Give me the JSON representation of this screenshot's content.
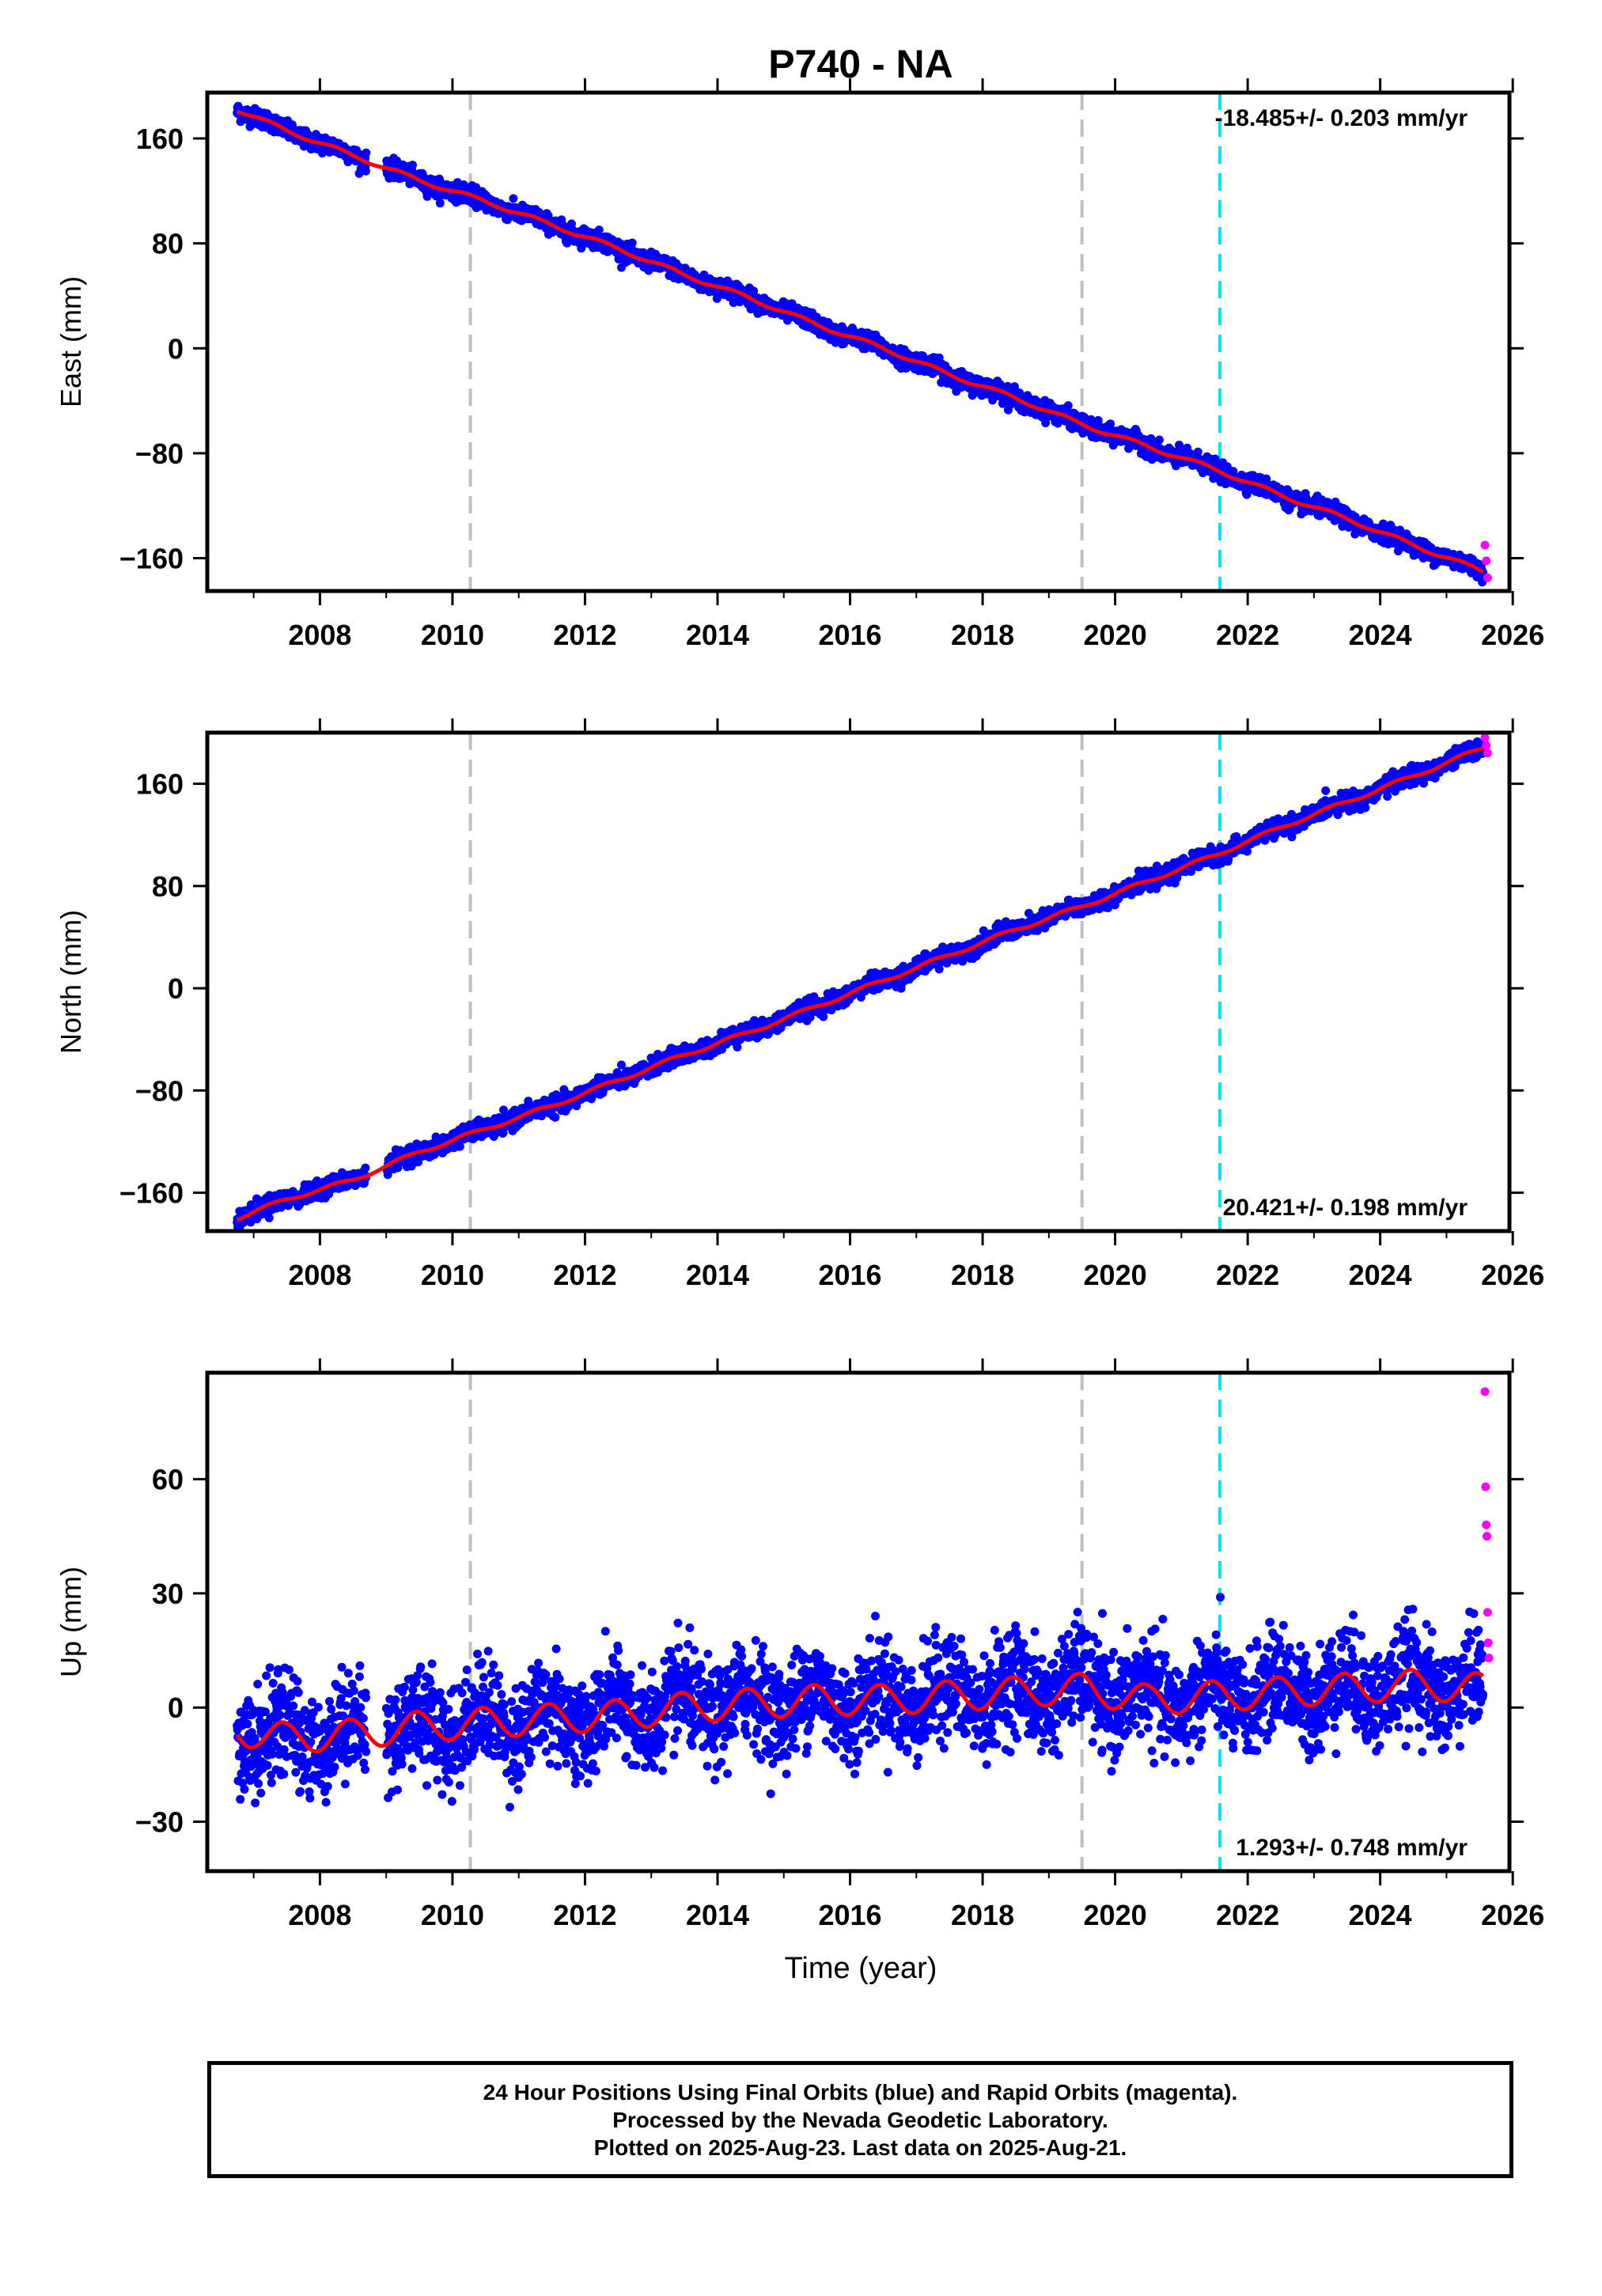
{
  "title": "P740 - NA",
  "xlabel": "Time (year)",
  "footer": {
    "line1": "24 Hour Positions Using Final Orbits (blue) and Rapid Orbits (magenta).",
    "line2": "Processed by the Nevada Geodetic Laboratory.",
    "line3": "Plotted on 2025-Aug-23. Last data on 2025-Aug-21."
  },
  "colors": {
    "final": "#0000ff",
    "rapid": "#ff00ff",
    "model": "#ff0000",
    "event_gray": "#c0c0c0",
    "event_cyan": "#00e5ee"
  },
  "chart_data": [
    {
      "type": "scatter",
      "ylabel": "East (mm)",
      "xlim": [
        2006.3,
        2025.95
      ],
      "ylim": [
        -185,
        195
      ],
      "yticks": [
        -160,
        -80,
        0,
        80,
        160
      ],
      "xticks": [
        2008,
        2010,
        2012,
        2014,
        2016,
        2018,
        2020,
        2022,
        2024,
        2026
      ],
      "rate_label": "-18.485+/- 0.203 mm/yr",
      "rate_position": "top-right",
      "grid": false,
      "events": [
        {
          "year": 2010.27,
          "color": "gray"
        },
        {
          "year": 2019.5,
          "color": "gray"
        },
        {
          "year": 2021.58,
          "color": "cyan"
        }
      ],
      "series": [
        {
          "name": "Final Orbits",
          "x": [
            2006.75,
            2007.5,
            2008.5,
            2009.5,
            2010.5,
            2011.5,
            2012.5,
            2013.5,
            2014.5,
            2015.5,
            2016.5,
            2017.5,
            2018.5,
            2019.5,
            2020.5,
            2021.5,
            2022.5,
            2023.5,
            2024.5,
            2025.55
          ],
          "y": [
            182,
            166,
            147,
            128,
            112,
            94,
            76,
            56,
            38,
            18,
            0,
            -20,
            -38,
            -58,
            -75,
            -92,
            -112,
            -130,
            -150,
            -170
          ]
        },
        {
          "name": "Rapid Orbits",
          "x": [
            2025.58,
            2025.6,
            2025.62
          ],
          "y": [
            -150,
            -162,
            -175
          ]
        }
      ]
    },
    {
      "type": "scatter",
      "ylabel": "North (mm)",
      "xlim": [
        2006.3,
        2025.95
      ],
      "ylim": [
        -190,
        200
      ],
      "yticks": [
        -160,
        -80,
        0,
        80,
        160
      ],
      "xticks": [
        2008,
        2010,
        2012,
        2014,
        2016,
        2018,
        2020,
        2022,
        2024,
        2026
      ],
      "rate_label": "20.421+/- 0.198 mm/yr",
      "rate_position": "bottom-right",
      "grid": false,
      "events": [
        {
          "year": 2010.27,
          "color": "gray"
        },
        {
          "year": 2019.5,
          "color": "gray"
        },
        {
          "year": 2021.58,
          "color": "cyan"
        }
      ],
      "series": [
        {
          "name": "Final Orbits",
          "x": [
            2006.75,
            2007.5,
            2008.5,
            2009.5,
            2010.5,
            2011.5,
            2012.5,
            2013.5,
            2014.5,
            2015.5,
            2016.5,
            2017.5,
            2018.5,
            2019.5,
            2020.5,
            2021.5,
            2022.5,
            2023.5,
            2024.5,
            2025.55
          ],
          "y": [
            -180,
            -165,
            -150,
            -128,
            -110,
            -92,
            -72,
            -52,
            -34,
            -14,
            6,
            26,
            46,
            64,
            84,
            104,
            126,
            146,
            166,
            188
          ]
        },
        {
          "name": "Rapid Orbits",
          "x": [
            2025.58,
            2025.6,
            2025.62
          ],
          "y": [
            196,
            190,
            184
          ]
        }
      ]
    },
    {
      "type": "scatter",
      "ylabel": "Up (mm)",
      "xlim": [
        2006.3,
        2025.95
      ],
      "ylim": [
        -43,
        88
      ],
      "yticks": [
        -30,
        0,
        30,
        60
      ],
      "xticks": [
        2008,
        2010,
        2012,
        2014,
        2016,
        2018,
        2020,
        2022,
        2024,
        2026
      ],
      "rate_label": "1.293+/- 0.748 mm/yr",
      "rate_position": "bottom-right",
      "grid": false,
      "events": [
        {
          "year": 2010.27,
          "color": "gray"
        },
        {
          "year": 2019.5,
          "color": "gray"
        },
        {
          "year": 2021.58,
          "color": "cyan"
        }
      ],
      "series": [
        {
          "name": "Final Orbits",
          "x": [
            2006.75,
            2007.5,
            2008.5,
            2009.5,
            2010.5,
            2011.5,
            2012.5,
            2013.5,
            2014.5,
            2015.5,
            2016.5,
            2017.5,
            2018.5,
            2019.5,
            2020.5,
            2021.5,
            2022.5,
            2023.5,
            2024.5,
            2025.55
          ],
          "y": [
            -6,
            -8,
            -7,
            -5,
            -4,
            -3,
            -2,
            0,
            1,
            2,
            2,
            3,
            4,
            5,
            2,
            3,
            4,
            5,
            6,
            5
          ]
        },
        {
          "name": "Rapid Orbits",
          "x": [
            2025.58,
            2025.59,
            2025.6,
            2025.61,
            2025.62,
            2025.63,
            2025.64
          ],
          "y": [
            83,
            58,
            48,
            45,
            25,
            17,
            13
          ]
        }
      ]
    }
  ]
}
